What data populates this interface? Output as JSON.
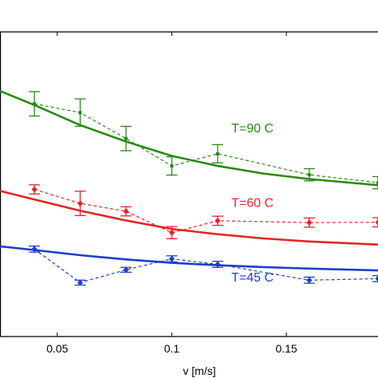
{
  "chart_data": {
    "type": "line",
    "xlabel": "v [m/s]",
    "xlim": [
      0.025,
      0.19
    ],
    "ylim": [
      0,
      1
    ],
    "xticks": [
      {
        "value": 0.05,
        "label": "0.05"
      },
      {
        "value": 0.1,
        "label": "0.1"
      },
      {
        "value": 0.15,
        "label": "0.15"
      }
    ],
    "grid": false,
    "series": [
      {
        "id": "t90",
        "color": "#2a8a12",
        "marker": "square",
        "measured": [
          {
            "x": 0.04,
            "y": 0.764,
            "err": 0.04
          },
          {
            "x": 0.06,
            "y": 0.735,
            "err": 0.045
          },
          {
            "x": 0.08,
            "y": 0.65,
            "err": 0.04
          },
          {
            "x": 0.1,
            "y": 0.56,
            "err": 0.03
          },
          {
            "x": 0.12,
            "y": 0.6,
            "err": 0.03
          },
          {
            "x": 0.16,
            "y": 0.531,
            "err": 0.02
          },
          {
            "x": 0.19,
            "y": 0.505,
            "err": 0.02
          }
        ],
        "fit": [
          {
            "x": 0.025,
            "y": 0.806
          },
          {
            "x": 0.04,
            "y": 0.76
          },
          {
            "x": 0.06,
            "y": 0.694
          },
          {
            "x": 0.08,
            "y": 0.64
          },
          {
            "x": 0.1,
            "y": 0.593
          },
          {
            "x": 0.12,
            "y": 0.56
          },
          {
            "x": 0.14,
            "y": 0.535
          },
          {
            "x": 0.16,
            "y": 0.517
          },
          {
            "x": 0.19,
            "y": 0.497
          }
        ]
      },
      {
        "id": "t60",
        "color": "#e32626",
        "marker": "diamond",
        "measured": [
          {
            "x": 0.04,
            "y": 0.483,
            "err": 0.015
          },
          {
            "x": 0.06,
            "y": 0.437,
            "err": 0.04
          },
          {
            "x": 0.08,
            "y": 0.411,
            "err": 0.015
          },
          {
            "x": 0.1,
            "y": 0.341,
            "err": 0.02
          },
          {
            "x": 0.12,
            "y": 0.38,
            "err": 0.015
          },
          {
            "x": 0.16,
            "y": 0.374,
            "err": 0.015
          },
          {
            "x": 0.19,
            "y": 0.375,
            "err": 0.015
          }
        ],
        "fit": [
          {
            "x": 0.025,
            "y": 0.478
          },
          {
            "x": 0.04,
            "y": 0.45
          },
          {
            "x": 0.06,
            "y": 0.413
          },
          {
            "x": 0.08,
            "y": 0.381
          },
          {
            "x": 0.1,
            "y": 0.353
          },
          {
            "x": 0.12,
            "y": 0.336
          },
          {
            "x": 0.14,
            "y": 0.322
          },
          {
            "x": 0.16,
            "y": 0.312
          },
          {
            "x": 0.19,
            "y": 0.302
          }
        ]
      },
      {
        "id": "t45",
        "color": "#1c3ecc",
        "marker": "diamond",
        "measured": [
          {
            "x": 0.04,
            "y": 0.287,
            "err": 0.01
          },
          {
            "x": 0.06,
            "y": 0.177,
            "err": 0.008
          },
          {
            "x": 0.08,
            "y": 0.219,
            "err": 0.008
          },
          {
            "x": 0.1,
            "y": 0.255,
            "err": 0.01
          },
          {
            "x": 0.12,
            "y": 0.237,
            "err": 0.01
          },
          {
            "x": 0.16,
            "y": 0.185,
            "err": 0.01
          },
          {
            "x": 0.19,
            "y": 0.19,
            "err": 0.01
          }
        ],
        "fit": [
          {
            "x": 0.025,
            "y": 0.296
          },
          {
            "x": 0.04,
            "y": 0.284
          },
          {
            "x": 0.06,
            "y": 0.267
          },
          {
            "x": 0.08,
            "y": 0.253
          },
          {
            "x": 0.1,
            "y": 0.242
          },
          {
            "x": 0.12,
            "y": 0.234
          },
          {
            "x": 0.14,
            "y": 0.228
          },
          {
            "x": 0.16,
            "y": 0.223
          },
          {
            "x": 0.19,
            "y": 0.217
          }
        ]
      }
    ],
    "annotations": [
      {
        "text": "T=90 C",
        "series": "t90",
        "x": 0.126,
        "y": 0.67
      },
      {
        "text": "T=60 C",
        "series": "t60",
        "x": 0.126,
        "y": 0.425
      },
      {
        "text": "T=45 C",
        "series": "t45",
        "x": 0.126,
        "y": 0.18
      }
    ]
  }
}
